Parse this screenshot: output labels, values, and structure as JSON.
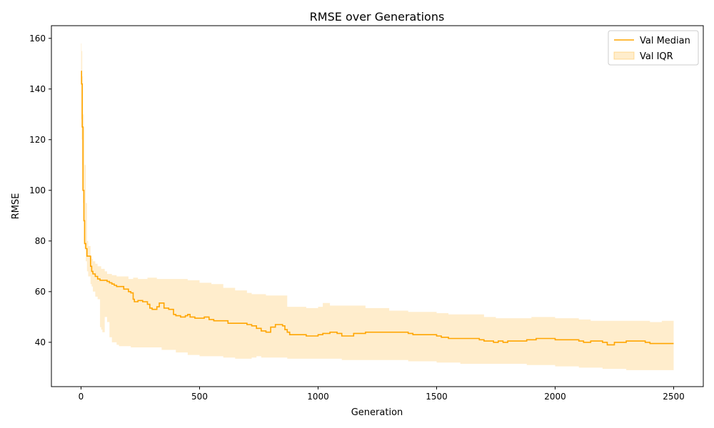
{
  "chart_data": {
    "type": "line",
    "title": "RMSE over Generations",
    "xlabel": "Generation",
    "ylabel": "RMSE",
    "xlim": [
      -125,
      2625
    ],
    "ylim": [
      22.5,
      165
    ],
    "x_ticks": [
      0,
      500,
      1000,
      1500,
      2000,
      2500
    ],
    "y_ticks": [
      40,
      60,
      80,
      100,
      120,
      140,
      160
    ],
    "grid": false,
    "legend_position": "top-right",
    "series": [
      {
        "name": "Val Median",
        "kind": "line",
        "color": "#ffa500",
        "x": [
          0,
          2,
          5,
          8,
          12,
          15,
          20,
          25,
          30,
          40,
          45,
          50,
          60,
          70,
          80,
          90,
          100,
          110,
          120,
          130,
          140,
          150,
          160,
          180,
          200,
          210,
          220,
          225,
          240,
          260,
          280,
          290,
          300,
          320,
          330,
          350,
          370,
          390,
          400,
          420,
          440,
          450,
          460,
          480,
          500,
          520,
          540,
          560,
          580,
          600,
          620,
          650,
          680,
          700,
          720,
          740,
          760,
          780,
          800,
          820,
          840,
          850,
          860,
          870,
          880,
          900,
          950,
          1000,
          1020,
          1050,
          1070,
          1080,
          1100,
          1150,
          1200,
          1300,
          1380,
          1400,
          1500,
          1520,
          1550,
          1600,
          1650,
          1680,
          1700,
          1720,
          1740,
          1760,
          1780,
          1800,
          1850,
          1880,
          1900,
          1920,
          1950,
          2000,
          2100,
          2120,
          2150,
          2200,
          2220,
          2250,
          2300,
          2350,
          2380,
          2400,
          2450,
          2500
        ],
        "y": [
          147,
          142,
          125,
          100,
          88,
          79,
          77,
          74,
          74,
          70,
          68,
          67,
          66,
          65,
          64.5,
          64.5,
          64.5,
          64,
          63.5,
          63,
          62.5,
          62,
          62,
          61,
          60,
          59.5,
          57,
          56,
          56.5,
          56,
          55,
          53.5,
          53,
          54,
          55.5,
          53.5,
          53,
          51,
          50.5,
          50,
          50.5,
          51,
          50,
          49.5,
          49.5,
          50,
          49,
          48.5,
          48.5,
          48.5,
          47.5,
          47.5,
          47.5,
          47,
          46.5,
          45.5,
          44.5,
          44,
          46,
          47,
          47,
          46.5,
          45,
          44,
          43,
          43,
          42.5,
          43,
          43.5,
          44,
          44,
          43.5,
          42.5,
          43.5,
          44,
          44,
          43.5,
          43,
          42.5,
          42,
          41.5,
          41.5,
          41.5,
          41,
          40.5,
          40.5,
          40,
          40.5,
          40,
          40.5,
          40.5,
          41,
          41,
          41.5,
          41.5,
          41,
          40.5,
          40,
          40.5,
          40,
          39,
          40,
          40.5,
          40.5,
          40,
          39.5,
          39.5,
          39.5
        ]
      },
      {
        "name": "Val IQR",
        "kind": "band",
        "color": "#ffa500",
        "opacity": 0.2,
        "x": [
          0,
          2,
          5,
          8,
          12,
          15,
          20,
          25,
          30,
          40,
          45,
          50,
          60,
          70,
          80,
          85,
          90,
          100,
          110,
          120,
          130,
          140,
          150,
          160,
          180,
          200,
          210,
          220,
          240,
          260,
          280,
          300,
          320,
          340,
          360,
          380,
          400,
          450,
          500,
          550,
          600,
          650,
          700,
          720,
          740,
          760,
          780,
          800,
          820,
          840,
          850,
          870,
          880,
          900,
          950,
          1000,
          1020,
          1050,
          1100,
          1150,
          1200,
          1300,
          1380,
          1400,
          1500,
          1550,
          1600,
          1650,
          1700,
          1750,
          1800,
          1850,
          1880,
          1900,
          1950,
          2000,
          2050,
          2100,
          2120,
          2150,
          2200,
          2250,
          2300,
          2350,
          2400,
          2450,
          2500
        ],
        "upper": [
          158,
          155,
          145,
          130,
          125,
          110,
          95,
          80,
          78,
          74,
          73,
          72,
          71,
          70,
          70,
          69,
          69,
          68,
          67,
          67,
          66.5,
          66.5,
          66,
          66,
          66,
          65,
          65,
          65.5,
          65,
          65,
          65.5,
          65.5,
          65,
          65,
          65,
          65,
          65,
          64.5,
          63.5,
          63,
          61.5,
          60.5,
          59.5,
          59,
          59,
          59,
          58.5,
          58.5,
          58.5,
          58.5,
          58.5,
          54,
          54,
          54,
          53.5,
          54,
          55.5,
          54.5,
          54.5,
          54.5,
          53.5,
          52.5,
          52,
          52,
          51.5,
          51,
          51,
          51,
          50,
          49.5,
          49.5,
          49.5,
          49.5,
          50,
          50,
          49.5,
          49.5,
          49,
          49,
          48.5,
          48.5,
          48.5,
          48.5,
          48.5,
          48,
          48.5,
          48.5
        ],
        "lower": [
          128,
          120,
          110,
          95,
          80,
          77,
          72,
          68,
          66,
          63,
          62,
          60,
          58,
          57,
          46,
          45,
          44,
          50,
          48,
          42,
          40,
          40,
          39,
          38.5,
          38.5,
          38.5,
          38,
          38,
          38,
          38,
          38,
          38,
          38,
          37,
          37,
          37,
          36,
          35,
          34.5,
          34.5,
          34,
          33.5,
          33.5,
          34,
          34.5,
          34,
          34,
          34,
          34,
          34,
          34,
          33.5,
          33.5,
          33.5,
          33.5,
          33.5,
          33.5,
          33.5,
          33,
          33,
          33,
          33,
          32.5,
          32.5,
          32,
          32,
          31.5,
          31.5,
          31.5,
          31.5,
          31.5,
          31.5,
          31,
          31,
          31,
          30.5,
          30.5,
          30,
          30,
          30,
          29.5,
          29.5,
          29,
          29,
          29,
          29,
          29
        ]
      }
    ]
  }
}
